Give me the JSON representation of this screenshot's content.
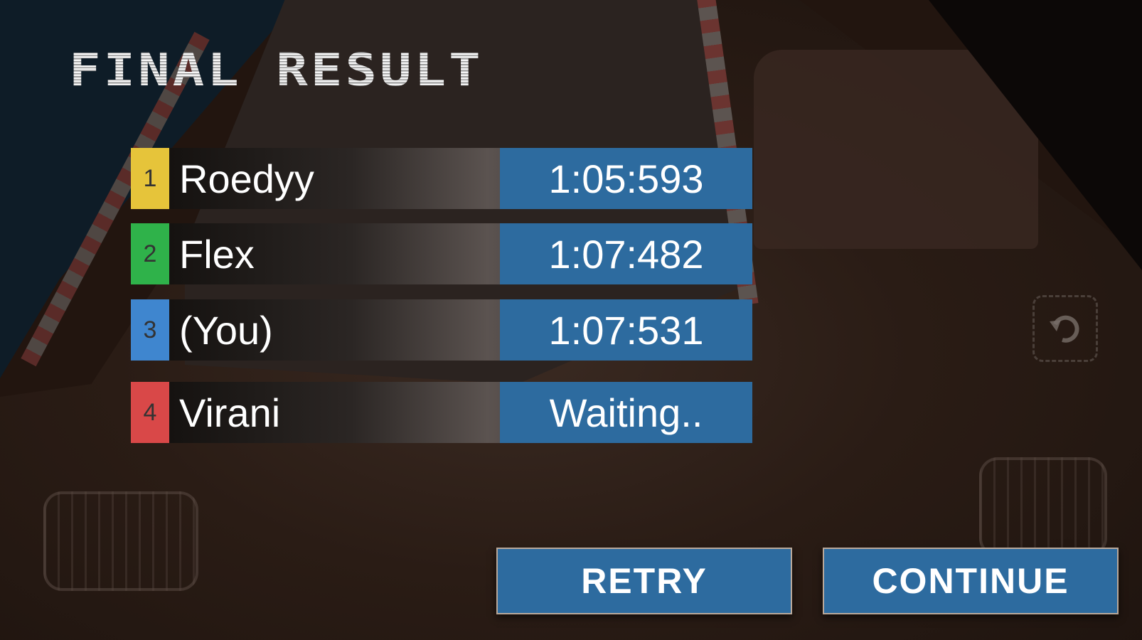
{
  "title": "FINAL RESULT",
  "results": [
    {
      "position": "1",
      "name": "Roedyy",
      "time": "1:05:593",
      "color": "#e6c43a"
    },
    {
      "position": "2",
      "name": "Flex",
      "time": "1:07:482",
      "color": "#2fb24a"
    },
    {
      "position": "3",
      "name": "(You)",
      "time": "1:07:531",
      "color": "#3f86cf"
    },
    {
      "position": "4",
      "name": "Virani",
      "time": "Waiting..",
      "color": "#d94848"
    }
  ],
  "buttons": {
    "retry": "RETRY",
    "continue": "CONTINUE"
  },
  "colors": {
    "accent": "#2d6b9f"
  },
  "icons": {
    "reset": "reset-car-icon",
    "brake": "brake-pedal-icon",
    "gas": "gas-pedal-icon"
  }
}
